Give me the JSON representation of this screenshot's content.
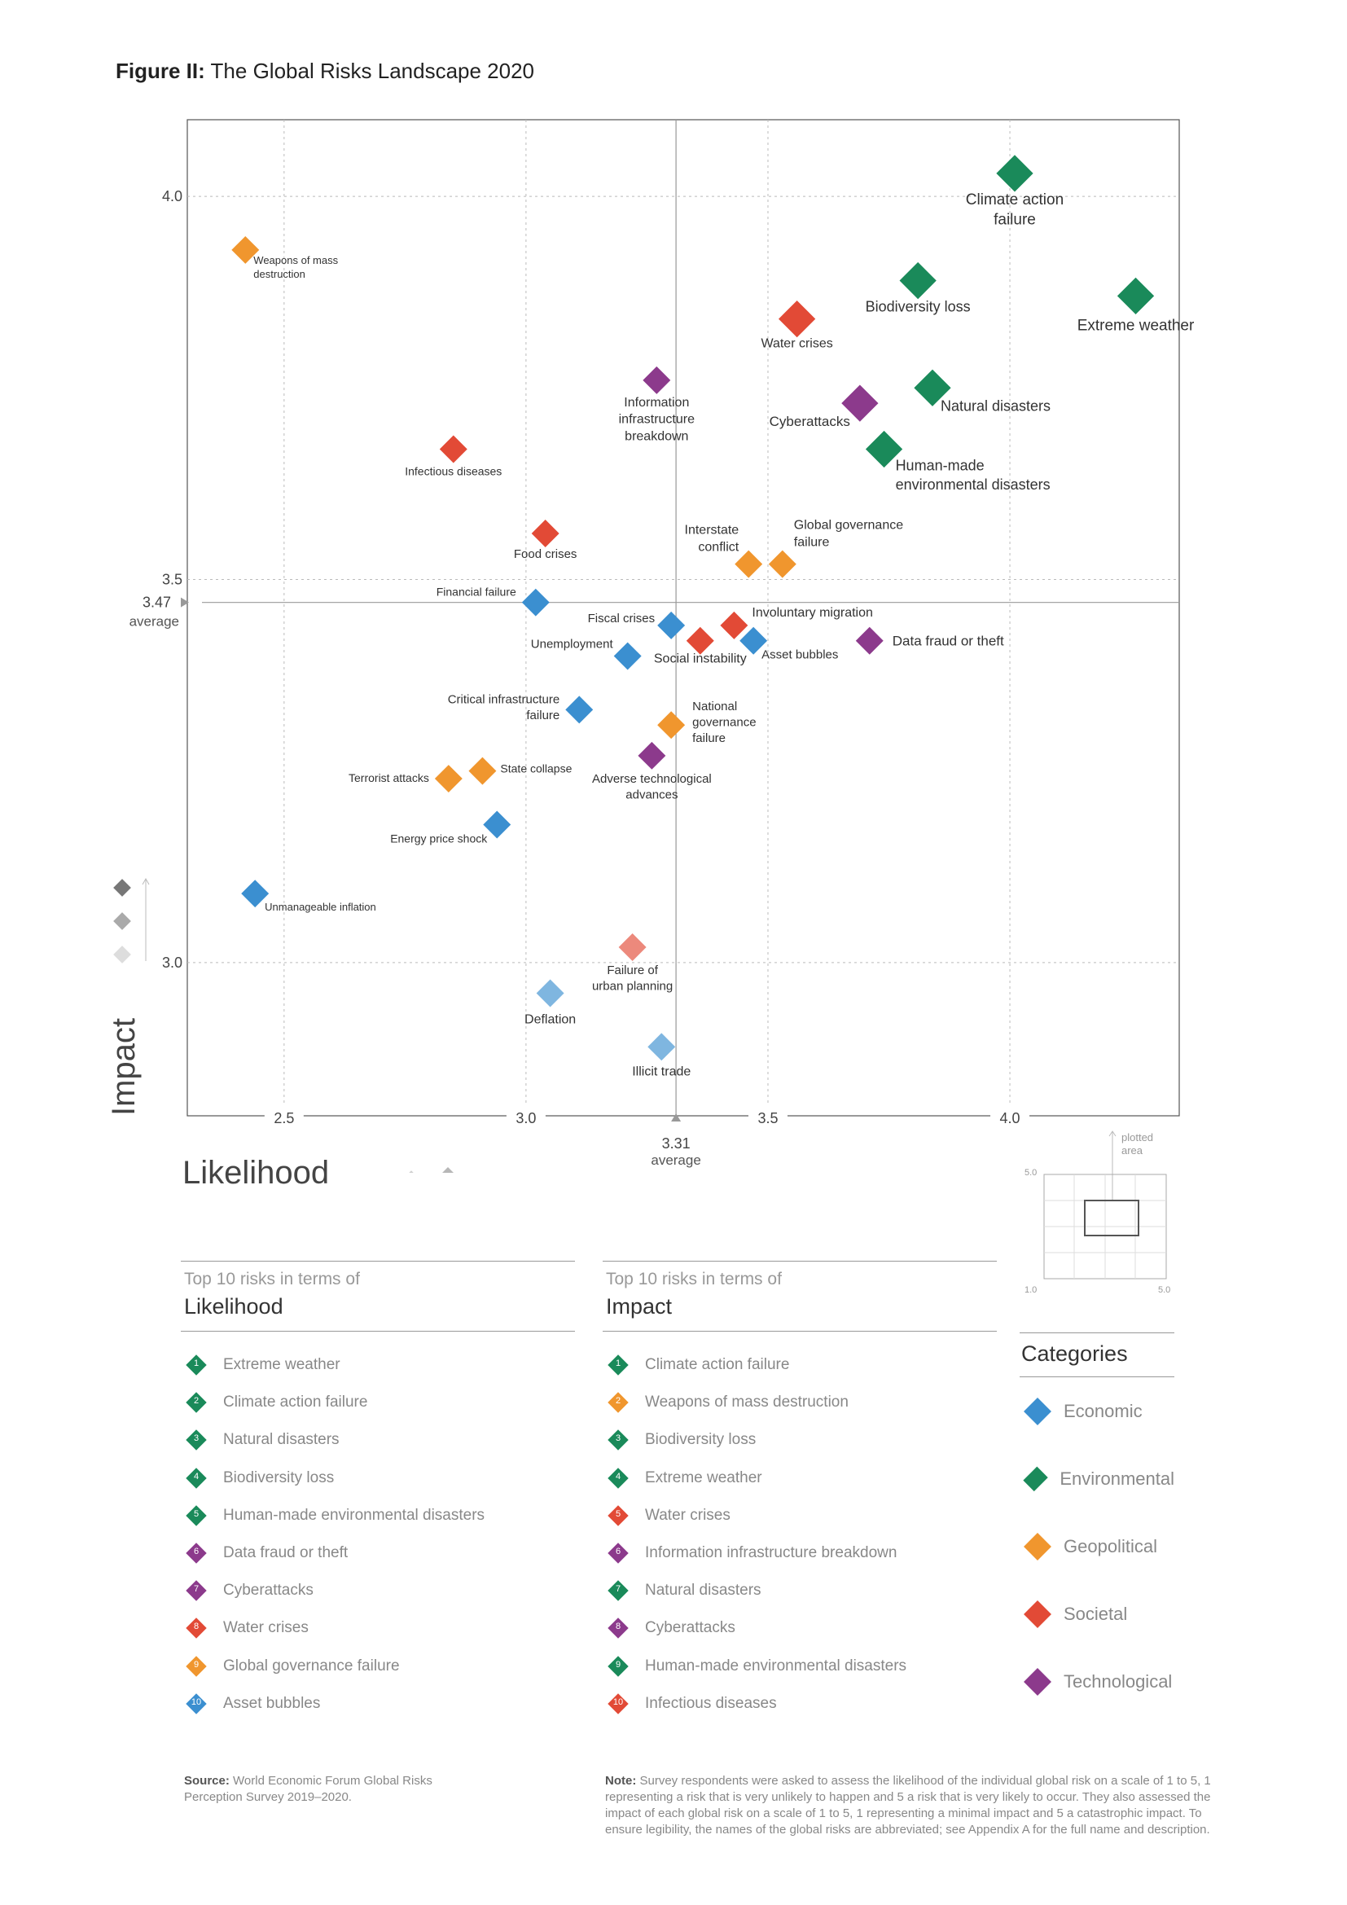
{
  "title": {
    "prefix": "Figure II:",
    "text": "The Global Risks Landscape 2020"
  },
  "chart_data": {
    "type": "scatter",
    "xlabel": "Likelihood",
    "ylabel": "Impact",
    "xlim": [
      2.3,
      4.35
    ],
    "ylim": [
      2.8,
      4.1
    ],
    "xticks": [
      "2.5",
      "3.0",
      "3.5",
      "4.0"
    ],
    "yticks": [
      "3.0",
      "3.5",
      "4.0"
    ],
    "x_average": {
      "value": "3.31",
      "label": "average"
    },
    "y_average": {
      "value": "3.47",
      "label": "average"
    },
    "grid": true,
    "colors": {
      "Economic": "#3b8fd0",
      "Environmental": "#1a8a5a",
      "Geopolitical": "#f0962e",
      "Societal": "#e24a36",
      "Technological": "#8c3a8c"
    },
    "points": [
      {
        "label": "Climate action failure",
        "lines": [
          "Climate action",
          "failure"
        ],
        "x": 4.01,
        "y": 4.03,
        "category": "Environmental"
      },
      {
        "label": "Extreme weather",
        "lines": [
          "Extreme weather"
        ],
        "x": 4.26,
        "y": 3.87,
        "category": "Environmental"
      },
      {
        "label": "Biodiversity loss",
        "lines": [
          "Biodiversity loss"
        ],
        "x": 3.81,
        "y": 3.89,
        "category": "Environmental"
      },
      {
        "label": "Water crises",
        "lines": [
          "Water crises"
        ],
        "x": 3.56,
        "y": 3.84,
        "category": "Societal"
      },
      {
        "label": "Natural disasters",
        "lines": [
          "Natural disasters"
        ],
        "x": 3.84,
        "y": 3.75,
        "category": "Environmental"
      },
      {
        "label": "Cyberattacks",
        "lines": [
          "Cyberattacks"
        ],
        "x": 3.69,
        "y": 3.73,
        "category": "Technological"
      },
      {
        "label": "Human-made environmental disasters",
        "lines": [
          "Human-made",
          "environmental disasters"
        ],
        "x": 3.74,
        "y": 3.67,
        "category": "Environmental"
      },
      {
        "label": "Information infrastructure breakdown",
        "lines": [
          "Information",
          "infrastructure",
          "breakdown"
        ],
        "x": 3.27,
        "y": 3.76,
        "category": "Technological"
      },
      {
        "label": "Weapons of mass destruction",
        "lines": [
          "Weapons of mass",
          "destruction"
        ],
        "x": 2.42,
        "y": 3.93,
        "category": "Geopolitical"
      },
      {
        "label": "Infectious diseases",
        "lines": [
          "Infectious diseases"
        ],
        "x": 2.85,
        "y": 3.67,
        "category": "Societal"
      },
      {
        "label": "Food crises",
        "lines": [
          "Food crises"
        ],
        "x": 3.04,
        "y": 3.56,
        "category": "Societal"
      },
      {
        "label": "Interstate conflict",
        "lines": [
          "Interstate",
          "conflict"
        ],
        "x": 3.46,
        "y": 3.52,
        "category": "Geopolitical"
      },
      {
        "label": "Global governance failure",
        "lines": [
          "Global governance",
          "failure"
        ],
        "x": 3.53,
        "y": 3.52,
        "category": "Geopolitical"
      },
      {
        "label": "Financial failure",
        "lines": [
          "Financial failure"
        ],
        "x": 3.02,
        "y": 3.47,
        "category": "Economic"
      },
      {
        "label": "Fiscal crises",
        "lines": [
          "Fiscal crises"
        ],
        "x": 3.3,
        "y": 3.44,
        "category": "Economic"
      },
      {
        "label": "Involuntary migration",
        "lines": [
          "Involuntary migration"
        ],
        "x": 3.43,
        "y": 3.44,
        "category": "Societal"
      },
      {
        "label": "Social instability",
        "lines": [
          "Social instability"
        ],
        "x": 3.36,
        "y": 3.42,
        "category": "Societal"
      },
      {
        "label": "Asset bubbles",
        "lines": [
          "Asset bubbles"
        ],
        "x": 3.47,
        "y": 3.42,
        "category": "Economic"
      },
      {
        "label": "Data fraud or theft",
        "lines": [
          "Data fraud or theft"
        ],
        "x": 3.71,
        "y": 3.42,
        "category": "Technological"
      },
      {
        "label": "Unemployment",
        "lines": [
          "Unemployment"
        ],
        "x": 3.21,
        "y": 3.4,
        "category": "Economic"
      },
      {
        "label": "Critical infrastructure failure",
        "lines": [
          "Critical infrastructure",
          "failure"
        ],
        "x": 3.11,
        "y": 3.33,
        "category": "Economic"
      },
      {
        "label": "National governance failure",
        "lines": [
          "National",
          "governance",
          "failure"
        ],
        "x": 3.3,
        "y": 3.31,
        "category": "Geopolitical"
      },
      {
        "label": "Adverse technological advances",
        "lines": [
          "Adverse technological",
          "advances"
        ],
        "x": 3.26,
        "y": 3.27,
        "category": "Technological"
      },
      {
        "label": "State collapse",
        "lines": [
          "State collapse"
        ],
        "x": 2.91,
        "y": 3.25,
        "category": "Geopolitical"
      },
      {
        "label": "Terrorist attacks",
        "lines": [
          "Terrorist attacks"
        ],
        "x": 2.84,
        "y": 3.24,
        "category": "Geopolitical"
      },
      {
        "label": "Energy price shock",
        "lines": [
          "Energy price shock"
        ],
        "x": 2.94,
        "y": 3.18,
        "category": "Economic"
      },
      {
        "label": "Unmanageable inflation",
        "lines": [
          "Unmanageable inflation"
        ],
        "x": 2.44,
        "y": 3.09,
        "category": "Economic"
      },
      {
        "label": "Failure of urban planning",
        "lines": [
          "Failure of",
          "urban planning"
        ],
        "x": 3.22,
        "y": 3.02,
        "category": "Societal"
      },
      {
        "label": "Deflation",
        "lines": [
          "Deflation"
        ],
        "x": 3.05,
        "y": 2.96,
        "category": "Economic"
      },
      {
        "label": "Illicit trade",
        "lines": [
          "Illicit trade"
        ],
        "x": 3.28,
        "y": 2.89,
        "category": "Economic"
      }
    ]
  },
  "plotted_area": {
    "label_lines": [
      "plotted",
      "area"
    ],
    "top": "5.0",
    "bottom": "1.0",
    "right": "5.0"
  },
  "top_likelihood": {
    "subtitle": "Top 10 risks in terms of",
    "title": "Likelihood",
    "items": [
      {
        "rank": "1",
        "label": "Extreme weather",
        "category": "Environmental"
      },
      {
        "rank": "2",
        "label": "Climate action failure",
        "category": "Environmental"
      },
      {
        "rank": "3",
        "label": "Natural disasters",
        "category": "Environmental"
      },
      {
        "rank": "4",
        "label": "Biodiversity loss",
        "category": "Environmental"
      },
      {
        "rank": "5",
        "label": "Human-made environmental disasters",
        "category": "Environmental"
      },
      {
        "rank": "6",
        "label": "Data fraud or theft",
        "category": "Technological"
      },
      {
        "rank": "7",
        "label": "Cyberattacks",
        "category": "Technological"
      },
      {
        "rank": "8",
        "label": "Water crises",
        "category": "Societal"
      },
      {
        "rank": "9",
        "label": "Global governance failure",
        "category": "Geopolitical"
      },
      {
        "rank": "10",
        "label": "Asset bubbles",
        "category": "Economic"
      }
    ]
  },
  "top_impact": {
    "subtitle": "Top 10 risks in terms of",
    "title": "Impact",
    "items": [
      {
        "rank": "1",
        "label": "Climate action failure",
        "category": "Environmental"
      },
      {
        "rank": "2",
        "label": "Weapons of mass destruction",
        "category": "Geopolitical"
      },
      {
        "rank": "3",
        "label": "Biodiversity loss",
        "category": "Environmental"
      },
      {
        "rank": "4",
        "label": "Extreme weather",
        "category": "Environmental"
      },
      {
        "rank": "5",
        "label": "Water crises",
        "category": "Societal"
      },
      {
        "rank": "6",
        "label": "Information infrastructure breakdown",
        "category": "Technological"
      },
      {
        "rank": "7",
        "label": "Natural disasters",
        "category": "Environmental"
      },
      {
        "rank": "8",
        "label": "Cyberattacks",
        "category": "Technological"
      },
      {
        "rank": "9",
        "label": "Human-made environmental disasters",
        "category": "Environmental"
      },
      {
        "rank": "10",
        "label": "Infectious diseases",
        "category": "Societal"
      }
    ]
  },
  "categories": {
    "title": "Categories",
    "items": [
      "Economic",
      "Environmental",
      "Geopolitical",
      "Societal",
      "Technological"
    ]
  },
  "source": {
    "label": "Source:",
    "text": "World Economic Forum Global Risks Perception Survey 2019–2020."
  },
  "note": {
    "label": "Note:",
    "text": "Survey respondents were asked to assess the likelihood of the individual global risk on a scale of 1 to 5, 1 representing a risk that is very unlikely to happen and 5 a risk that is very likely to occur. They also assessed the impact of each global risk on a scale of 1 to 5, 1 representing a minimal impact and 5 a catastrophic impact. To ensure legibility, the names of the global risks are abbreviated; see Appendix A for the full name and description."
  }
}
